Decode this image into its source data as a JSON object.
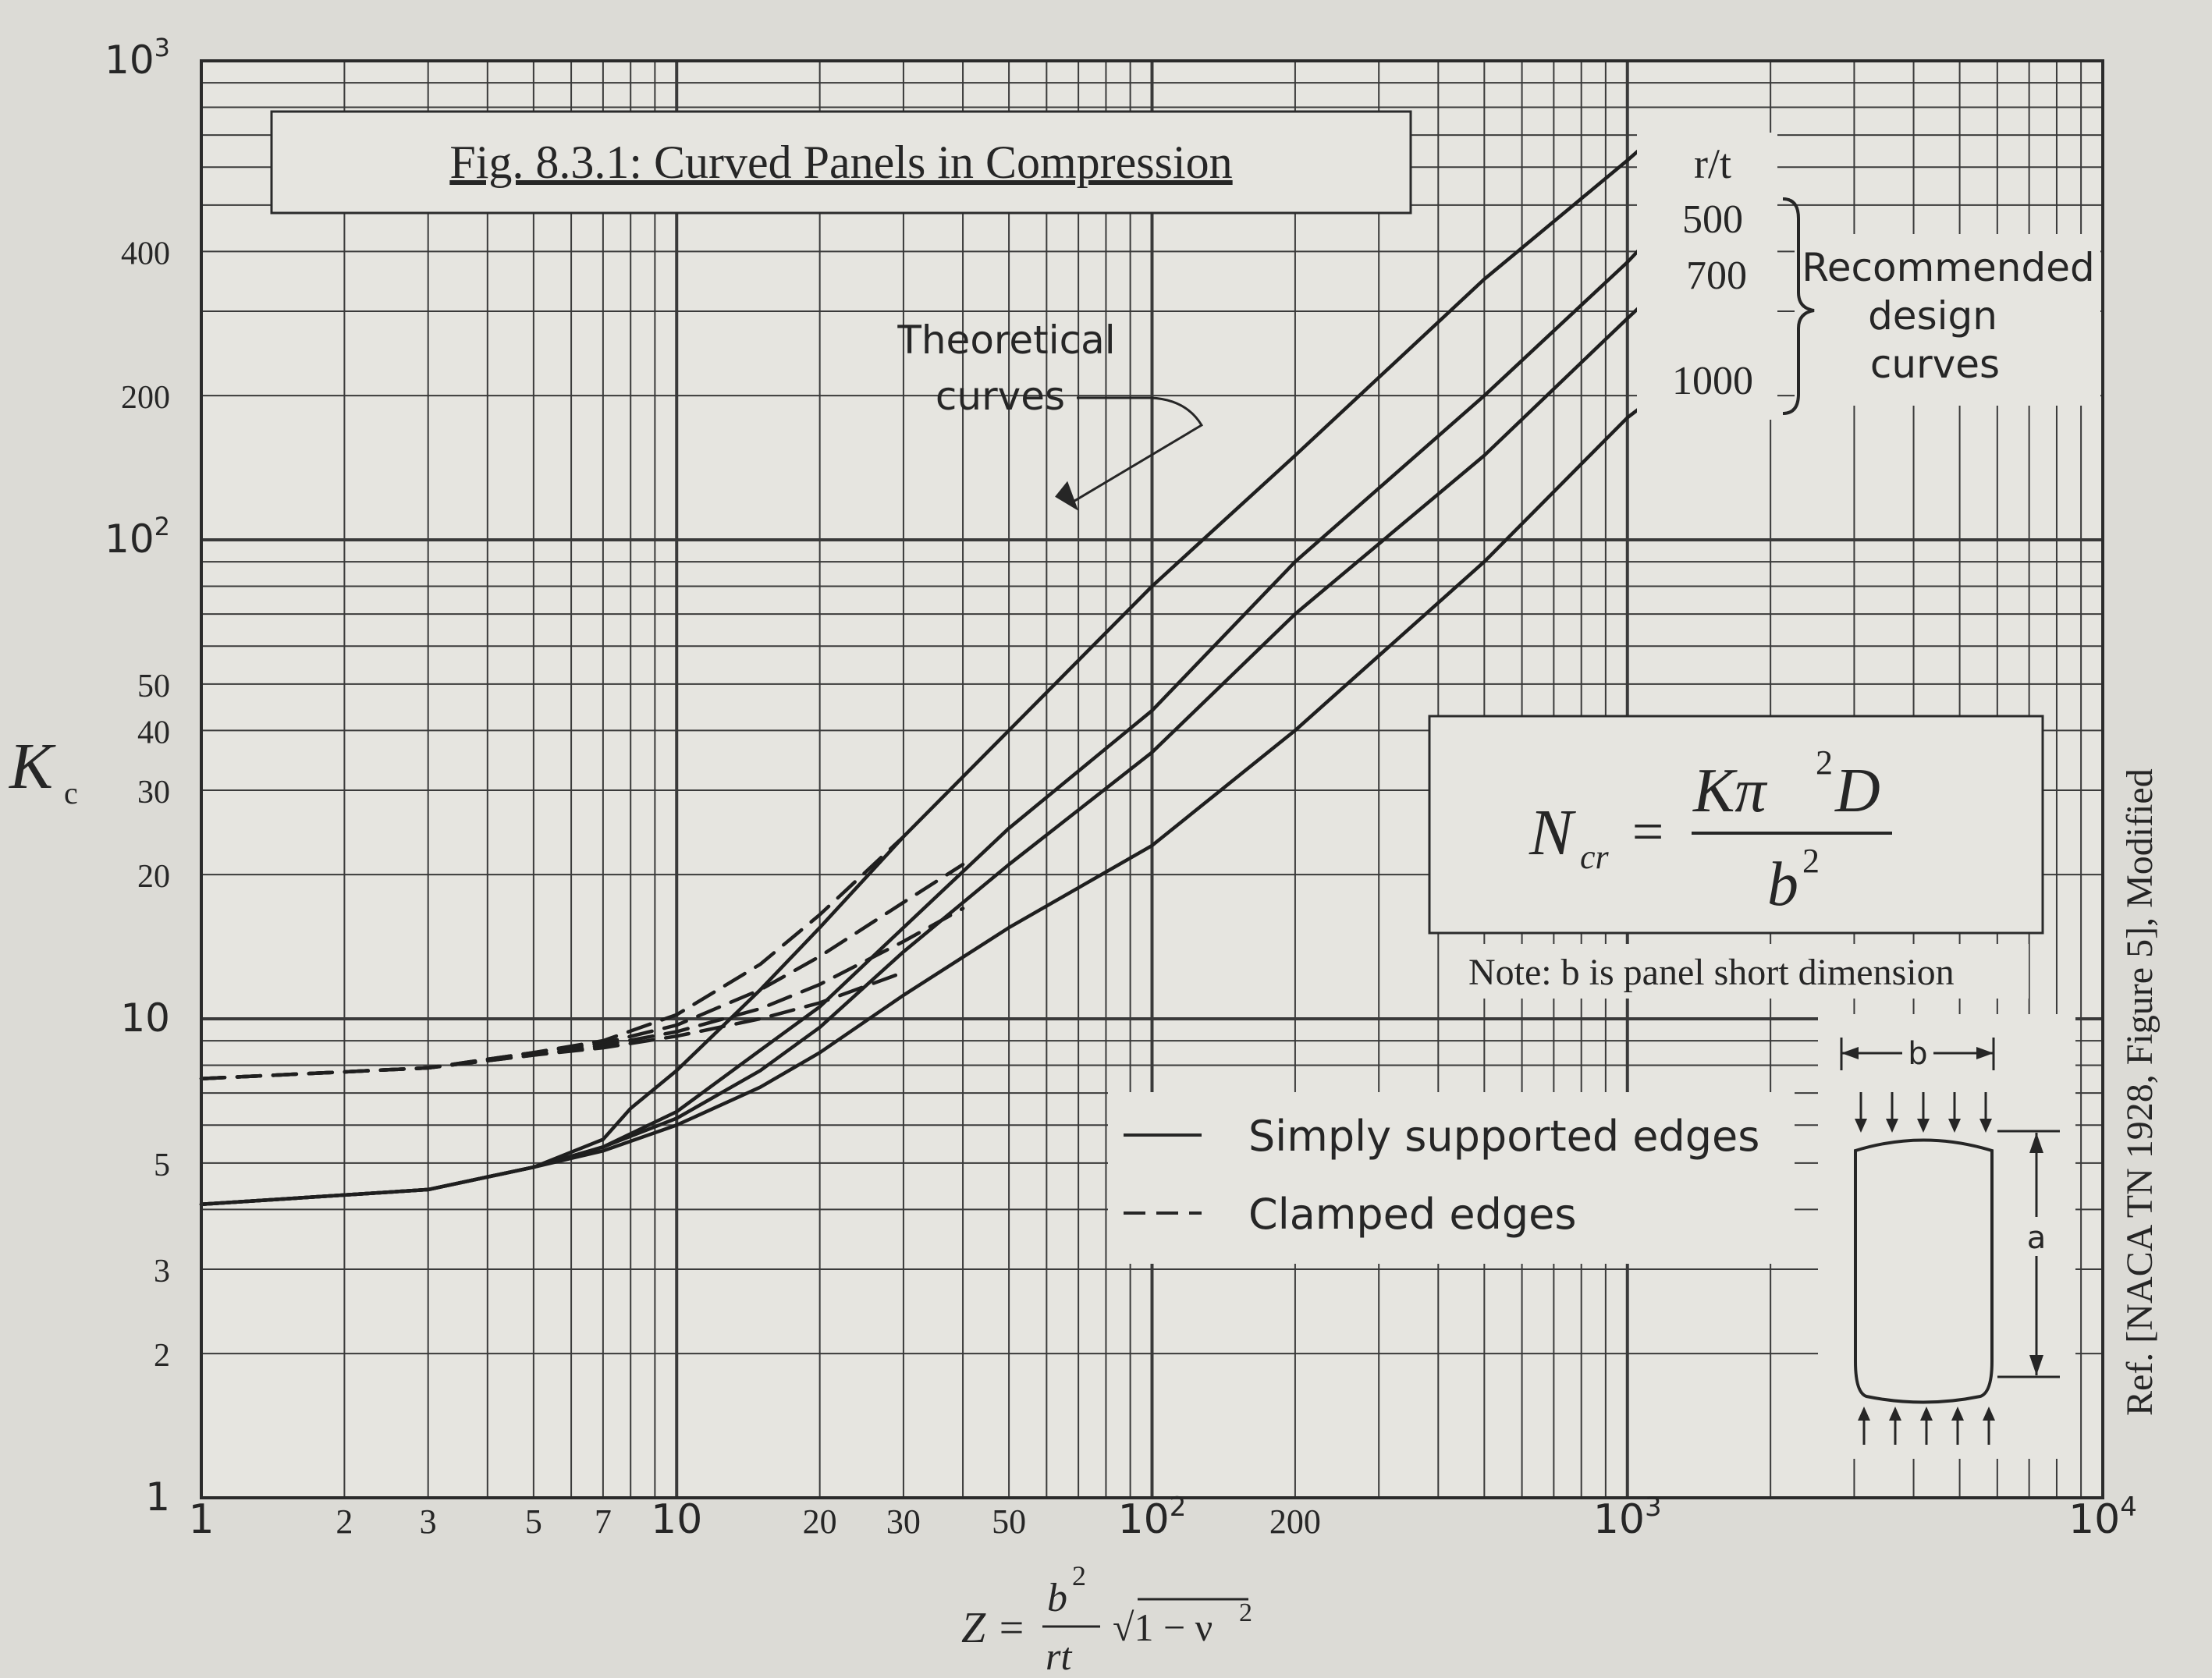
{
  "chart_data": {
    "type": "line",
    "title": "Fig. 8.3.1: Curved Panels in Compression",
    "xscale": "log",
    "yscale": "log",
    "xlim": [
      1,
      10000
    ],
    "ylim": [
      1,
      1000
    ],
    "ylabel_main": "K",
    "ylabel_sub": "c",
    "xlabel": {
      "lhs": "Z =",
      "numerator": "b",
      "numerator_exp": "2",
      "denominator": "rt",
      "radical": "√1 − ν",
      "radical_exp": "2"
    },
    "xticks": [
      {
        "v": 1,
        "label": "1",
        "font": "sans"
      },
      {
        "v": 2,
        "label": "2",
        "font": "serif"
      },
      {
        "v": 3,
        "label": "3",
        "font": "serif"
      },
      {
        "v": 5,
        "label": "5",
        "font": "serif"
      },
      {
        "v": 7,
        "label": "7",
        "font": "serif"
      },
      {
        "v": 10,
        "label": "10",
        "font": "sans"
      },
      {
        "v": 20,
        "label": "20",
        "font": "serif"
      },
      {
        "v": 30,
        "label": "30",
        "font": "serif"
      },
      {
        "v": 50,
        "label": "50",
        "font": "serif"
      },
      {
        "v": 100,
        "label": "10",
        "sup": "2",
        "font": "sans"
      },
      {
        "v": 200,
        "label": "200",
        "font": "serif"
      },
      {
        "v": 1000,
        "label": "10",
        "sup": "3",
        "font": "sans"
      },
      {
        "v": 10000,
        "label": "10",
        "sup": "4",
        "font": "sans"
      }
    ],
    "yticks": [
      {
        "v": 1,
        "label": "1",
        "font": "sans"
      },
      {
        "v": 2,
        "label": "2",
        "font": "serif"
      },
      {
        "v": 3,
        "label": "3",
        "font": "serif"
      },
      {
        "v": 5,
        "label": "5",
        "font": "serif"
      },
      {
        "v": 10,
        "label": "10",
        "font": "sans"
      },
      {
        "v": 20,
        "label": "20",
        "font": "serif"
      },
      {
        "v": 30,
        "label": "30",
        "font": "serif"
      },
      {
        "v": 40,
        "label": "40",
        "font": "serif"
      },
      {
        "v": 50,
        "label": "50",
        "font": "serif"
      },
      {
        "v": 100,
        "label": "10",
        "sup": "2",
        "font": "sans"
      },
      {
        "v": 200,
        "label": "200",
        "font": "serif"
      },
      {
        "v": 400,
        "label": "400",
        "font": "serif"
      },
      {
        "v": 1000,
        "label": "10",
        "sup": "3",
        "font": "sans"
      }
    ],
    "rt_header": "r/t",
    "series": [
      {
        "name": "500",
        "style": "solid",
        "x": [
          1,
          3,
          5,
          7,
          8,
          10,
          15,
          20,
          30,
          50,
          100,
          200,
          500,
          1000,
          1150
        ],
        "y": [
          4.1,
          4.4,
          4.9,
          5.6,
          6.5,
          7.8,
          11.5,
          15.5,
          24,
          40,
          80,
          150,
          350,
          620,
          700
        ]
      },
      {
        "name": "700",
        "style": "solid",
        "x": [
          1,
          3,
          5,
          7,
          10,
          15,
          20,
          30,
          50,
          100,
          200,
          500,
          1000,
          1150
        ],
        "y": [
          4.1,
          4.4,
          4.9,
          5.4,
          6.4,
          8.6,
          10.6,
          15.5,
          25,
          44,
          90,
          200,
          380,
          440
        ]
      },
      {
        "name": "1000",
        "style": "solid",
        "x": [
          1,
          3,
          5,
          7,
          10,
          15,
          20,
          30,
          50,
          100,
          200,
          500,
          1000,
          1150
        ],
        "y": [
          4.1,
          4.4,
          4.9,
          5.4,
          6.2,
          7.8,
          9.6,
          13.8,
          21,
          36,
          70,
          150,
          290,
          330
        ]
      },
      {
        "name": "",
        "style": "solid",
        "x": [
          1,
          3,
          5,
          7,
          10,
          15,
          20,
          30,
          50,
          100,
          200,
          500,
          1000,
          1150
        ],
        "y": [
          4.1,
          4.4,
          4.9,
          5.3,
          6.0,
          7.2,
          8.5,
          11.2,
          15.5,
          23,
          40,
          90,
          180,
          200
        ]
      },
      {
        "name": "",
        "style": "dashed",
        "x": [
          1,
          3,
          5,
          7,
          10,
          15,
          20,
          30
        ],
        "y": [
          7.5,
          7.9,
          8.5,
          9.0,
          10.2,
          13,
          16.5,
          24
        ]
      },
      {
        "name": "",
        "style": "dashed",
        "x": [
          1,
          3,
          5,
          7,
          10,
          15,
          20,
          30,
          40
        ],
        "y": [
          7.5,
          7.9,
          8.5,
          8.9,
          9.7,
          11.5,
          13.5,
          17.5,
          21
        ]
      },
      {
        "name": "",
        "style": "dashed",
        "x": [
          1,
          3,
          5,
          7,
          10,
          15,
          20,
          30,
          40
        ],
        "y": [
          7.5,
          7.9,
          8.4,
          8.8,
          9.4,
          10.5,
          11.8,
          14.5,
          17
        ]
      },
      {
        "name": "",
        "style": "dashed",
        "x": [
          1,
          3,
          5,
          7,
          10,
          15,
          20,
          30
        ],
        "y": [
          7.5,
          7.9,
          8.4,
          8.7,
          9.2,
          10.0,
          10.8,
          12.5
        ]
      }
    ],
    "recommended": {
      "label_lines": [
        "Recommended",
        "design",
        "curves"
      ]
    },
    "theoretical": {
      "label_lines": [
        "Theoretical",
        "curves"
      ],
      "arrow_target": {
        "x": 70,
        "y": 115
      }
    },
    "legend": {
      "placement": "lower-middle",
      "items": [
        {
          "label": "Simply supported edges",
          "style": "solid"
        },
        {
          "label": "Clamped edges",
          "style": "dashed"
        }
      ]
    },
    "formula": {
      "lhs_main": "N",
      "lhs_sub": "cr",
      "equals": "=",
      "numerator": "Kπ",
      "numerator_exp": "2",
      "numerator_tail": "D",
      "denominator": "b",
      "denominator_exp": "2"
    },
    "note": "Note: b is panel short dimension",
    "sketch": {
      "b_label": "b",
      "a_label": "a"
    },
    "reference": "Ref. [NACA TN 1928, Figure 5], Modified"
  }
}
